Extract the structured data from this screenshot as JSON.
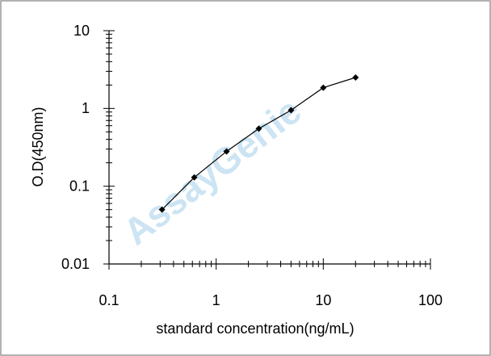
{
  "chart_data": {
    "type": "line",
    "x_label": "standard concentration(ng/mL)",
    "y_label": "O.D(450nm)",
    "watermark": "AssayGenie",
    "x": [
      0.3125,
      0.625,
      1.25,
      2.5,
      5,
      10,
      20
    ],
    "series": [
      {
        "color": "#000000",
        "values": [
          0.05,
          0.13,
          0.28,
          0.55,
          0.95,
          1.85,
          2.5
        ]
      }
    ],
    "xlim": [
      0.1,
      100
    ],
    "xticks": [
      0.1,
      1,
      10,
      100
    ],
    "ylim": [
      0.01,
      10
    ],
    "yticks": [
      0.01,
      0.1,
      1,
      10
    ],
    "xlog": true,
    "ylog": true,
    "grid": false
  }
}
